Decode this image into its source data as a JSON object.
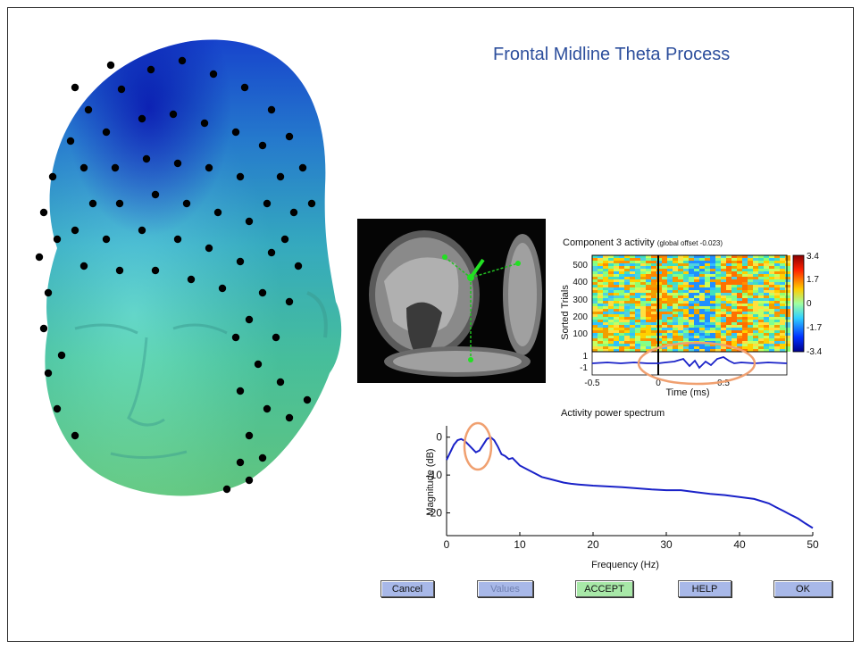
{
  "slide": {
    "title": "Frontal Midline Theta Process"
  },
  "erp_image": {
    "title_main": "Component 3 activity",
    "title_sub": "(global offset -0.023)",
    "ylabel": "Sorted Trials",
    "yticks": [
      "500",
      "400",
      "300",
      "200",
      "100"
    ],
    "trace_ticks": [
      "1",
      "-1"
    ],
    "xticks": [
      "-0.5",
      "0",
      "0.5"
    ],
    "xlabel": "Time (ms)",
    "colorbar_ticks": [
      "3.4",
      "1.7",
      "0",
      "-1.7",
      "-3.4"
    ]
  },
  "chart_data": {
    "type": "line",
    "title": "Activity power spectrum",
    "xlabel": "Frequency (Hz)",
    "ylabel": "Magnitude (dB)",
    "xlim": [
      0,
      50
    ],
    "ylim": [
      -26,
      3
    ],
    "xticks": [
      0,
      10,
      20,
      30,
      40,
      50
    ],
    "yticks": [
      0,
      -10,
      -20
    ],
    "grid": false,
    "series": [
      {
        "x": [
          0,
          0.5,
          1,
          1.5,
          2,
          2.5,
          3,
          3.5,
          4,
          4.5,
          5,
          5.5,
          6,
          6.5,
          7,
          7.5,
          8,
          8.5,
          9,
          10,
          11,
          12,
          13,
          14,
          15,
          16,
          17,
          18,
          20,
          22,
          24,
          26,
          28,
          30,
          32,
          34,
          36,
          38,
          40,
          42,
          44,
          45,
          46,
          47,
          48,
          49,
          50
        ],
        "y": [
          -6,
          -4,
          -2,
          -0.8,
          -0.5,
          -1,
          -2,
          -3,
          -4,
          -3.5,
          -2,
          -0.5,
          0,
          -0.8,
          -2.5,
          -4.5,
          -5,
          -5.8,
          -5.5,
          -7.5,
          -8.5,
          -9.5,
          -10.5,
          -11,
          -11.5,
          -12,
          -12.3,
          -12.5,
          -12.8,
          -13,
          -13.2,
          -13.5,
          -13.8,
          -14,
          -14,
          -14.5,
          -15,
          -15.3,
          -15.8,
          -16.3,
          -17.5,
          -18.5,
          -19.5,
          -20.5,
          -21.5,
          -22.8,
          -24
        ]
      }
    ]
  },
  "buttons": {
    "cancel": "Cancel",
    "values": "Values",
    "accept": "ACCEPT",
    "help": "HELP",
    "ok": "OK"
  },
  "colors": {
    "title": "#2c4e9c",
    "spectrum_line": "#1a22c8",
    "highlight": "#f0a070",
    "button_blue": "#a8b8e8",
    "button_green": "#a8e8a8"
  }
}
